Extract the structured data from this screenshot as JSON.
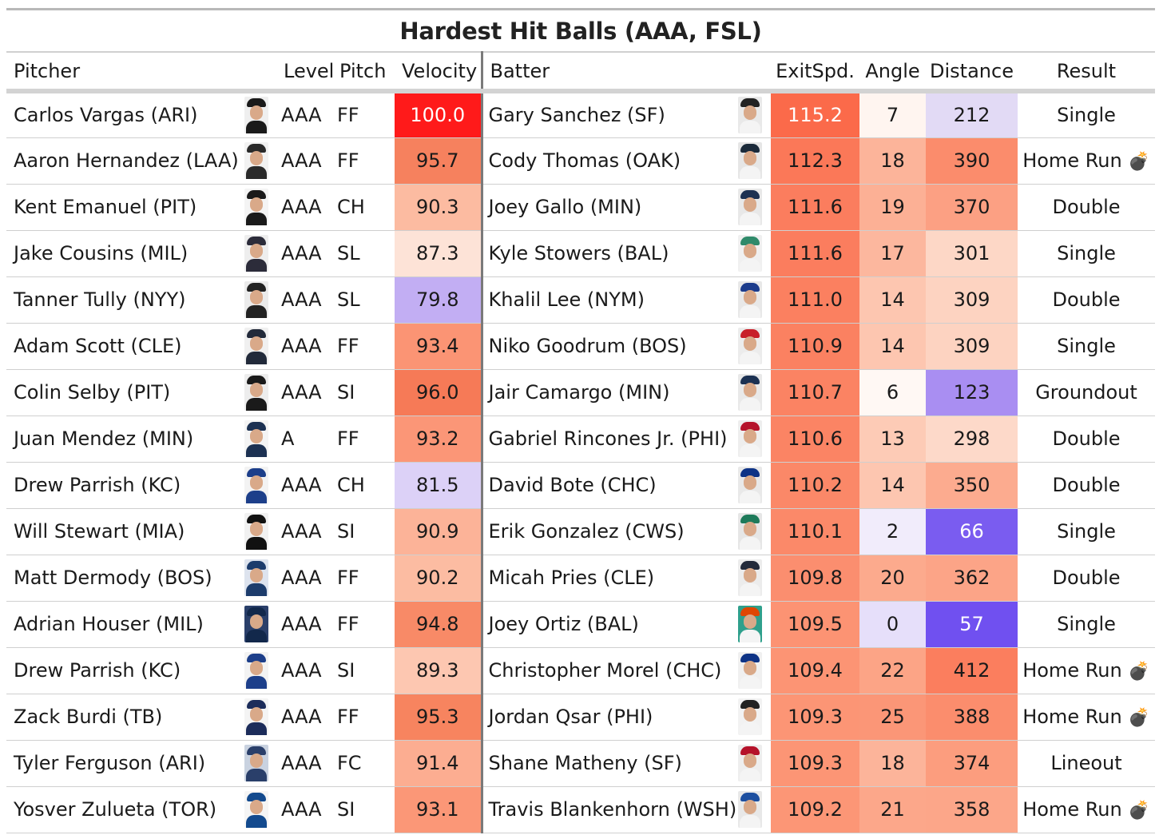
{
  "title": "Hardest Hit Balls (AAA, FSL)",
  "columns": {
    "pitcher": "Pitcher",
    "level": "Level",
    "pitch": "Pitch",
    "velocity": "Velocity",
    "batter": "Batter",
    "exit_speed": "ExitSpd.",
    "angle": "Angle",
    "distance": "Distance",
    "result": "Result"
  },
  "rows": [
    {
      "pitcher": "Carlos Vargas (ARI)",
      "level": "AAA",
      "pitch": "FF",
      "velocity": "100.0",
      "batter": "Gary Sanchez (SF)",
      "exit_speed": "115.2",
      "angle": "7",
      "distance": "212",
      "result": "Single",
      "result_icon": "",
      "p_cap": "#1a1a1a",
      "p_bg": "#efefef",
      "b_cap": "#222222",
      "b_bg": "#e9e9e9",
      "vel_bg": "#ff1a1a",
      "vel_fg": "#ffffff",
      "ev_bg": "#fb6a4a",
      "ev_fg": "#ffffff",
      "ang_bg": "#fff5f0",
      "dist_bg": "#e2daf5",
      "dist_fg": "#1a1a1a"
    },
    {
      "pitcher": "Aaron Hernandez (LAA)",
      "level": "AAA",
      "pitch": "FF",
      "velocity": "95.7",
      "batter": "Cody Thomas (OAK)",
      "exit_speed": "112.3",
      "angle": "18",
      "distance": "390",
      "result": "Home Run",
      "result_icon": "💣",
      "p_cap": "#2a2a2a",
      "p_bg": "#f2f2f2",
      "b_cap": "#1b2a3a",
      "b_bg": "#e6e6e6",
      "vel_bg": "#f6815e",
      "vel_fg": "#1a1a1a",
      "ev_bg": "#fb7858",
      "ev_fg": "#1a1a1a",
      "ang_bg": "#fcb49a",
      "dist_bg": "#fb8c6c",
      "dist_fg": "#1a1a1a"
    },
    {
      "pitcher": "Kent Emanuel (PIT)",
      "level": "AAA",
      "pitch": "CH",
      "velocity": "90.3",
      "batter": "Joey Gallo (MIN)",
      "exit_speed": "111.6",
      "angle": "19",
      "distance": "370",
      "result": "Double",
      "result_icon": "",
      "p_cap": "#1a1a1a",
      "p_bg": "#f4f4f4",
      "b_cap": "#1c3152",
      "b_bg": "#e8e8e8",
      "vel_bg": "#fcbba1",
      "vel_fg": "#1a1a1a",
      "ev_bg": "#fb7d5e",
      "ev_fg": "#1a1a1a",
      "ang_bg": "#fcb095",
      "dist_bg": "#fca083",
      "dist_fg": "#1a1a1a"
    },
    {
      "pitcher": "Jake Cousins (MIL)",
      "level": "AAA",
      "pitch": "SL",
      "velocity": "87.3",
      "batter": "Kyle Stowers (BAL)",
      "exit_speed": "111.6",
      "angle": "17",
      "distance": "301",
      "result": "Single",
      "result_icon": "",
      "p_cap": "#2c2c3a",
      "p_bg": "#eeeeee",
      "b_cap": "#2f8a6a",
      "b_bg": "#f0f0f0",
      "vel_bg": "#fde3d7",
      "vel_fg": "#1a1a1a",
      "ev_bg": "#fb7d5e",
      "ev_fg": "#1a1a1a",
      "ang_bg": "#fcb79e",
      "dist_bg": "#fdd7c6",
      "dist_fg": "#1a1a1a"
    },
    {
      "pitcher": "Tanner Tully (NYY)",
      "level": "AAA",
      "pitch": "SL",
      "velocity": "79.8",
      "batter": "Khalil Lee (NYM)",
      "exit_speed": "111.0",
      "angle": "14",
      "distance": "309",
      "result": "Double",
      "result_icon": "",
      "p_cap": "#222222",
      "p_bg": "#ebebeb",
      "b_cap": "#1c3c8c",
      "b_bg": "#e8e8e8",
      "vel_bg": "#c2aef3",
      "vel_fg": "#1a1a1a",
      "ev_bg": "#fb8060",
      "ev_fg": "#1a1a1a",
      "ang_bg": "#fdc6b0",
      "dist_bg": "#fdd3c1",
      "dist_fg": "#1a1a1a"
    },
    {
      "pitcher": "Adam Scott (CLE)",
      "level": "AAA",
      "pitch": "FF",
      "velocity": "93.4",
      "batter": "Niko Goodrum (BOS)",
      "exit_speed": "110.9",
      "angle": "14",
      "distance": "309",
      "result": "Single",
      "result_icon": "",
      "p_cap": "#222a3a",
      "p_bg": "#f0f0f0",
      "b_cap": "#c8202a",
      "b_bg": "#ececec",
      "vel_bg": "#fb9474",
      "vel_fg": "#1a1a1a",
      "ev_bg": "#fb8161",
      "ev_fg": "#1a1a1a",
      "ang_bg": "#fdc6b0",
      "dist_bg": "#fdd3c1",
      "dist_fg": "#1a1a1a"
    },
    {
      "pitcher": "Colin Selby (PIT)",
      "level": "AAA",
      "pitch": "SI",
      "velocity": "96.0",
      "batter": "Jair Camargo (MIN)",
      "exit_speed": "110.7",
      "angle": "6",
      "distance": "123",
      "result": "Groundout",
      "result_icon": "",
      "p_cap": "#1a1a1a",
      "p_bg": "#ededed",
      "b_cap": "#1c3152",
      "b_bg": "#e9e9e9",
      "vel_bg": "#f67a57",
      "vel_fg": "#1a1a1a",
      "ev_bg": "#fb8363",
      "ev_fg": "#1a1a1a",
      "ang_bg": "#fff8f4",
      "dist_bg": "#a98ef2",
      "dist_fg": "#1a1a1a"
    },
    {
      "pitcher": "Juan Mendez (MIN)",
      "level": "A",
      "pitch": "FF",
      "velocity": "93.2",
      "batter": "Gabriel Rincones Jr. (PHI)",
      "exit_speed": "110.6",
      "angle": "13",
      "distance": "298",
      "result": "Double",
      "result_icon": "",
      "p_cap": "#1c3152",
      "p_bg": "#f4f4f4",
      "b_cap": "#b5122a",
      "b_bg": "#eeeeee",
      "vel_bg": "#fb9677",
      "vel_fg": "#1a1a1a",
      "ev_bg": "#fb8464",
      "ev_fg": "#1a1a1a",
      "ang_bg": "#fdcbb6",
      "dist_bg": "#fdd9c9",
      "dist_fg": "#1a1a1a"
    },
    {
      "pitcher": "Drew Parrish (KC)",
      "level": "AAA",
      "pitch": "CH",
      "velocity": "81.5",
      "batter": "David Bote (CHC)",
      "exit_speed": "110.2",
      "angle": "14",
      "distance": "350",
      "result": "Double",
      "result_icon": "",
      "p_cap": "#1d3f8a",
      "p_bg": "#f3f3f3",
      "b_cap": "#0e3386",
      "b_bg": "#e9e9e9",
      "vel_bg": "#dcd1f7",
      "vel_fg": "#1a1a1a",
      "ev_bg": "#fb8868",
      "ev_fg": "#1a1a1a",
      "ang_bg": "#fdc6b0",
      "dist_bg": "#fcab8f",
      "dist_fg": "#1a1a1a"
    },
    {
      "pitcher": "Will Stewart (MIA)",
      "level": "AAA",
      "pitch": "SI",
      "velocity": "90.9",
      "batter": "Erik Gonzalez (CWS)",
      "exit_speed": "110.1",
      "angle": "2",
      "distance": "66",
      "result": "Single",
      "result_icon": "",
      "p_cap": "#111111",
      "p_bg": "#f1f1f1",
      "b_cap": "#1e7a5a",
      "b_bg": "#e6e6e6",
      "vel_bg": "#fcb398",
      "vel_fg": "#1a1a1a",
      "ev_bg": "#fb8969",
      "ev_fg": "#1a1a1a",
      "ang_bg": "#f1ecfb",
      "dist_bg": "#7a5cf0",
      "dist_fg": "#ffffff"
    },
    {
      "pitcher": "Matt Dermody (BOS)",
      "level": "AAA",
      "pitch": "FF",
      "velocity": "90.2",
      "batter": "Micah Pries (CLE)",
      "exit_speed": "109.8",
      "angle": "20",
      "distance": "362",
      "result": "Double",
      "result_icon": "",
      "p_cap": "#1c3c6c",
      "p_bg": "#dde3ee",
      "b_cap": "#222a3a",
      "b_bg": "#ececec",
      "vel_bg": "#fcbca2",
      "vel_fg": "#1a1a1a",
      "ev_bg": "#fb8e6f",
      "ev_fg": "#1a1a1a",
      "ang_bg": "#fcaa8d",
      "dist_bg": "#fca487",
      "dist_fg": "#1a1a1a"
    },
    {
      "pitcher": "Adrian Houser (MIL)",
      "level": "AAA",
      "pitch": "FF",
      "velocity": "94.8",
      "batter": "Joey Ortiz (BAL)",
      "exit_speed": "109.5",
      "angle": "0",
      "distance": "57",
      "result": "Single",
      "result_icon": "",
      "p_cap": "#12284b",
      "p_bg": "#2a3f6a",
      "b_cap": "#df4601",
      "b_bg": "#2fa08c",
      "vel_bg": "#f88a67",
      "vel_fg": "#1a1a1a",
      "ev_bg": "#fc9373",
      "ev_fg": "#1a1a1a",
      "ang_bg": "#e6dffa",
      "dist_bg": "#7050f0",
      "dist_fg": "#ffffff"
    },
    {
      "pitcher": "Drew Parrish (KC)",
      "level": "AAA",
      "pitch": "SI",
      "velocity": "89.3",
      "batter": "Christopher Morel (CHC)",
      "exit_speed": "109.4",
      "angle": "22",
      "distance": "412",
      "result": "Home Run",
      "result_icon": "💣",
      "p_cap": "#1d3f8a",
      "p_bg": "#f3f3f3",
      "b_cap": "#0e3386",
      "b_bg": "#f0f0f0",
      "vel_bg": "#fdc7b1",
      "vel_fg": "#1a1a1a",
      "ev_bg": "#fc9474",
      "ev_fg": "#1a1a1a",
      "ang_bg": "#fca486",
      "dist_bg": "#fb7e5e",
      "dist_fg": "#1a1a1a"
    },
    {
      "pitcher": "Zack Burdi (TB)",
      "level": "AAA",
      "pitch": "FF",
      "velocity": "95.3",
      "batter": "Jordan Qsar (PHI)",
      "exit_speed": "109.3",
      "angle": "25",
      "distance": "388",
      "result": "Home Run",
      "result_icon": "💣",
      "p_cap": "#1c2c5a",
      "p_bg": "#f4f4f4",
      "b_cap": "#222222",
      "b_bg": "#f2f2f2",
      "vel_bg": "#f7845f",
      "vel_fg": "#1a1a1a",
      "ev_bg": "#fc9575",
      "ev_fg": "#1a1a1a",
      "ang_bg": "#fb9677",
      "dist_bg": "#fb8d6d",
      "dist_fg": "#1a1a1a"
    },
    {
      "pitcher": "Tyler Ferguson (ARI)",
      "level": "AAA",
      "pitch": "FC",
      "velocity": "91.4",
      "batter": "Shane Matheny (SF)",
      "exit_speed": "109.3",
      "angle": "18",
      "distance": "374",
      "result": "Lineout",
      "result_icon": "",
      "p_cap": "#2a3f6a",
      "p_bg": "#c9d2e0",
      "b_cap": "#b5122a",
      "b_bg": "#eeeeee",
      "vel_bg": "#fcad91",
      "vel_fg": "#1a1a1a",
      "ev_bg": "#fc9575",
      "ev_fg": "#1a1a1a",
      "ang_bg": "#fcb49a",
      "dist_bg": "#fc9d7e",
      "dist_fg": "#1a1a1a"
    },
    {
      "pitcher": "Yosver Zulueta (TOR)",
      "level": "AAA",
      "pitch": "SI",
      "velocity": "93.1",
      "batter": "Travis Blankenhorn (WSH)",
      "exit_speed": "109.2",
      "angle": "21",
      "distance": "358",
      "result": "Home Run",
      "result_icon": "💣",
      "p_cap": "#134a8e",
      "p_bg": "#f5f5f5",
      "b_cap": "#1d4fa0",
      "b_bg": "#e8e8e8",
      "vel_bg": "#fb9777",
      "vel_fg": "#1a1a1a",
      "ev_bg": "#fc9676",
      "ev_fg": "#1a1a1a",
      "ang_bg": "#fca78a",
      "dist_bg": "#fca689",
      "dist_fg": "#1a1a1a"
    }
  ]
}
